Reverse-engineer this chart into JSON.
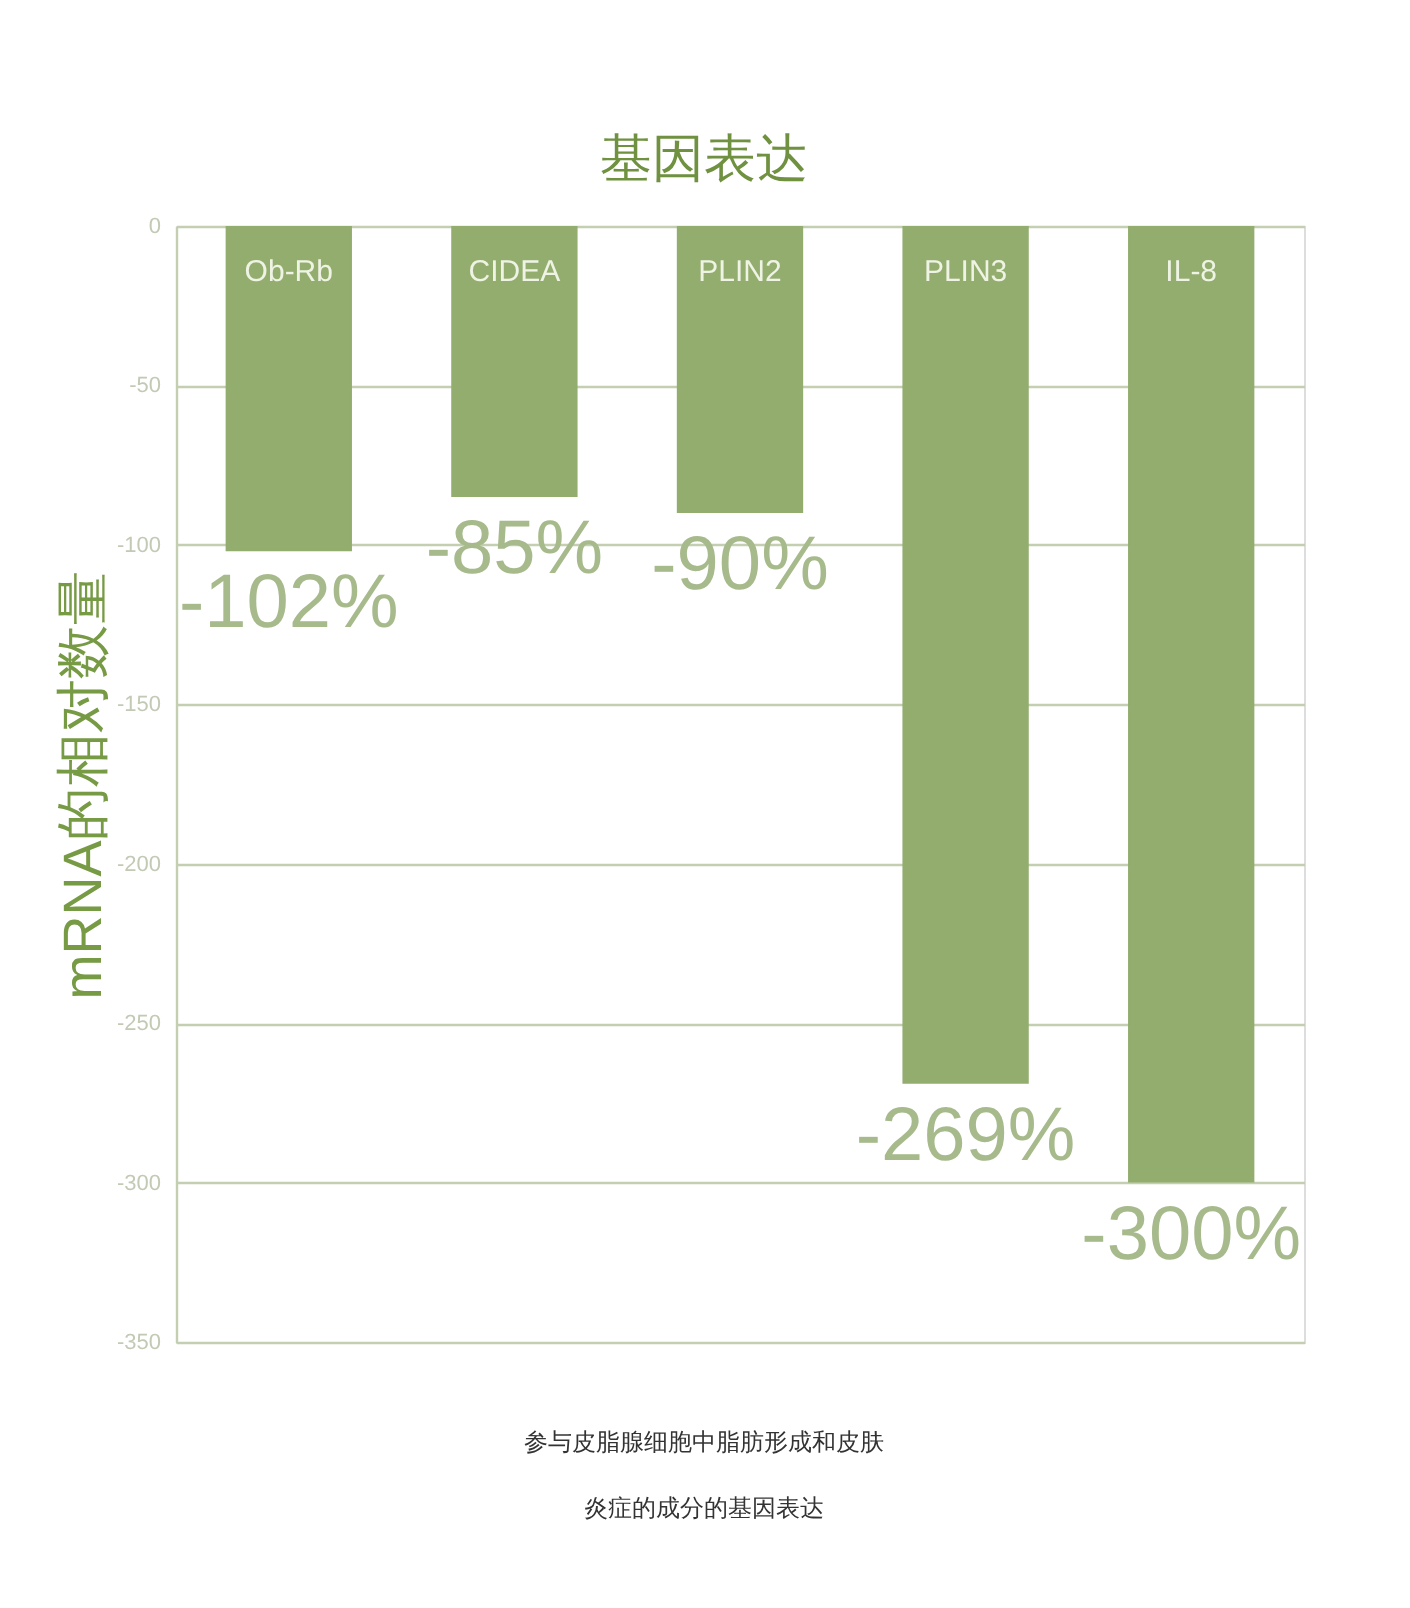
{
  "chart_data": {
    "type": "bar",
    "title": "基因表达",
    "ylabel": "mRNA的相对数量",
    "categories": [
      "Ob-Rb",
      "CIDEA",
      "PLIN2",
      "PLIN3",
      "IL-8"
    ],
    "values": [
      -102,
      -85,
      -90,
      -269,
      -300
    ],
    "color": "#93ad6e",
    "value_labels": [
      "-102%",
      "-85%",
      "-90%",
      "-269%",
      "-300%"
    ],
    "ylim": [
      -350,
      0
    ],
    "yticks": [
      0,
      -50,
      -100,
      -150,
      -200,
      -250,
      -300,
      -350
    ],
    "grid": "y",
    "annotations": [
      "参与皮脂腺细胞中脂肪形成和皮肤",
      "炎症的成分的基因表达"
    ]
  }
}
